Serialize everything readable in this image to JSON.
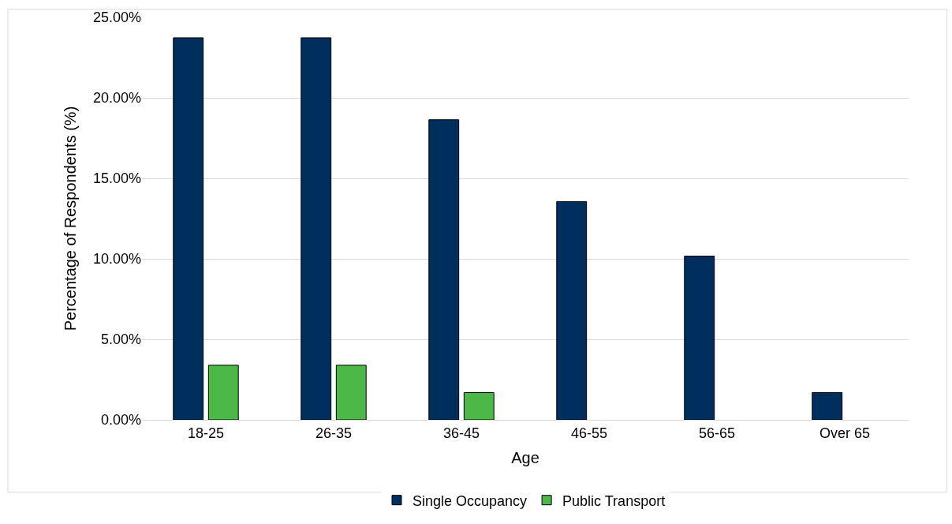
{
  "chart_data": {
    "type": "bar",
    "xlabel": "Age",
    "ylabel": "Percentage of Respondents (%)",
    "categories": [
      "18-25",
      "26-35",
      "36-45",
      "46-55",
      "56-65",
      "Over 65"
    ],
    "series": [
      {
        "name": "Single Occupancy",
        "color": "#002e5d",
        "values": [
          23.73,
          23.73,
          18.64,
          13.56,
          10.17,
          1.69
        ]
      },
      {
        "name": "Public Transport",
        "color": "#4cb848",
        "values": [
          3.39,
          3.39,
          1.69,
          0,
          0,
          0
        ]
      }
    ],
    "ylim": [
      0,
      25
    ],
    "yticks": [
      {
        "value": 0,
        "label": "0.00%"
      },
      {
        "value": 5,
        "label": "5.00%"
      },
      {
        "value": 10,
        "label": "10.00%"
      },
      {
        "value": 15,
        "label": "15.00%"
      },
      {
        "value": 20,
        "label": "20.00%"
      },
      {
        "value": 25,
        "label": "25.00%"
      }
    ],
    "grid": "y",
    "legend": "bottom"
  }
}
